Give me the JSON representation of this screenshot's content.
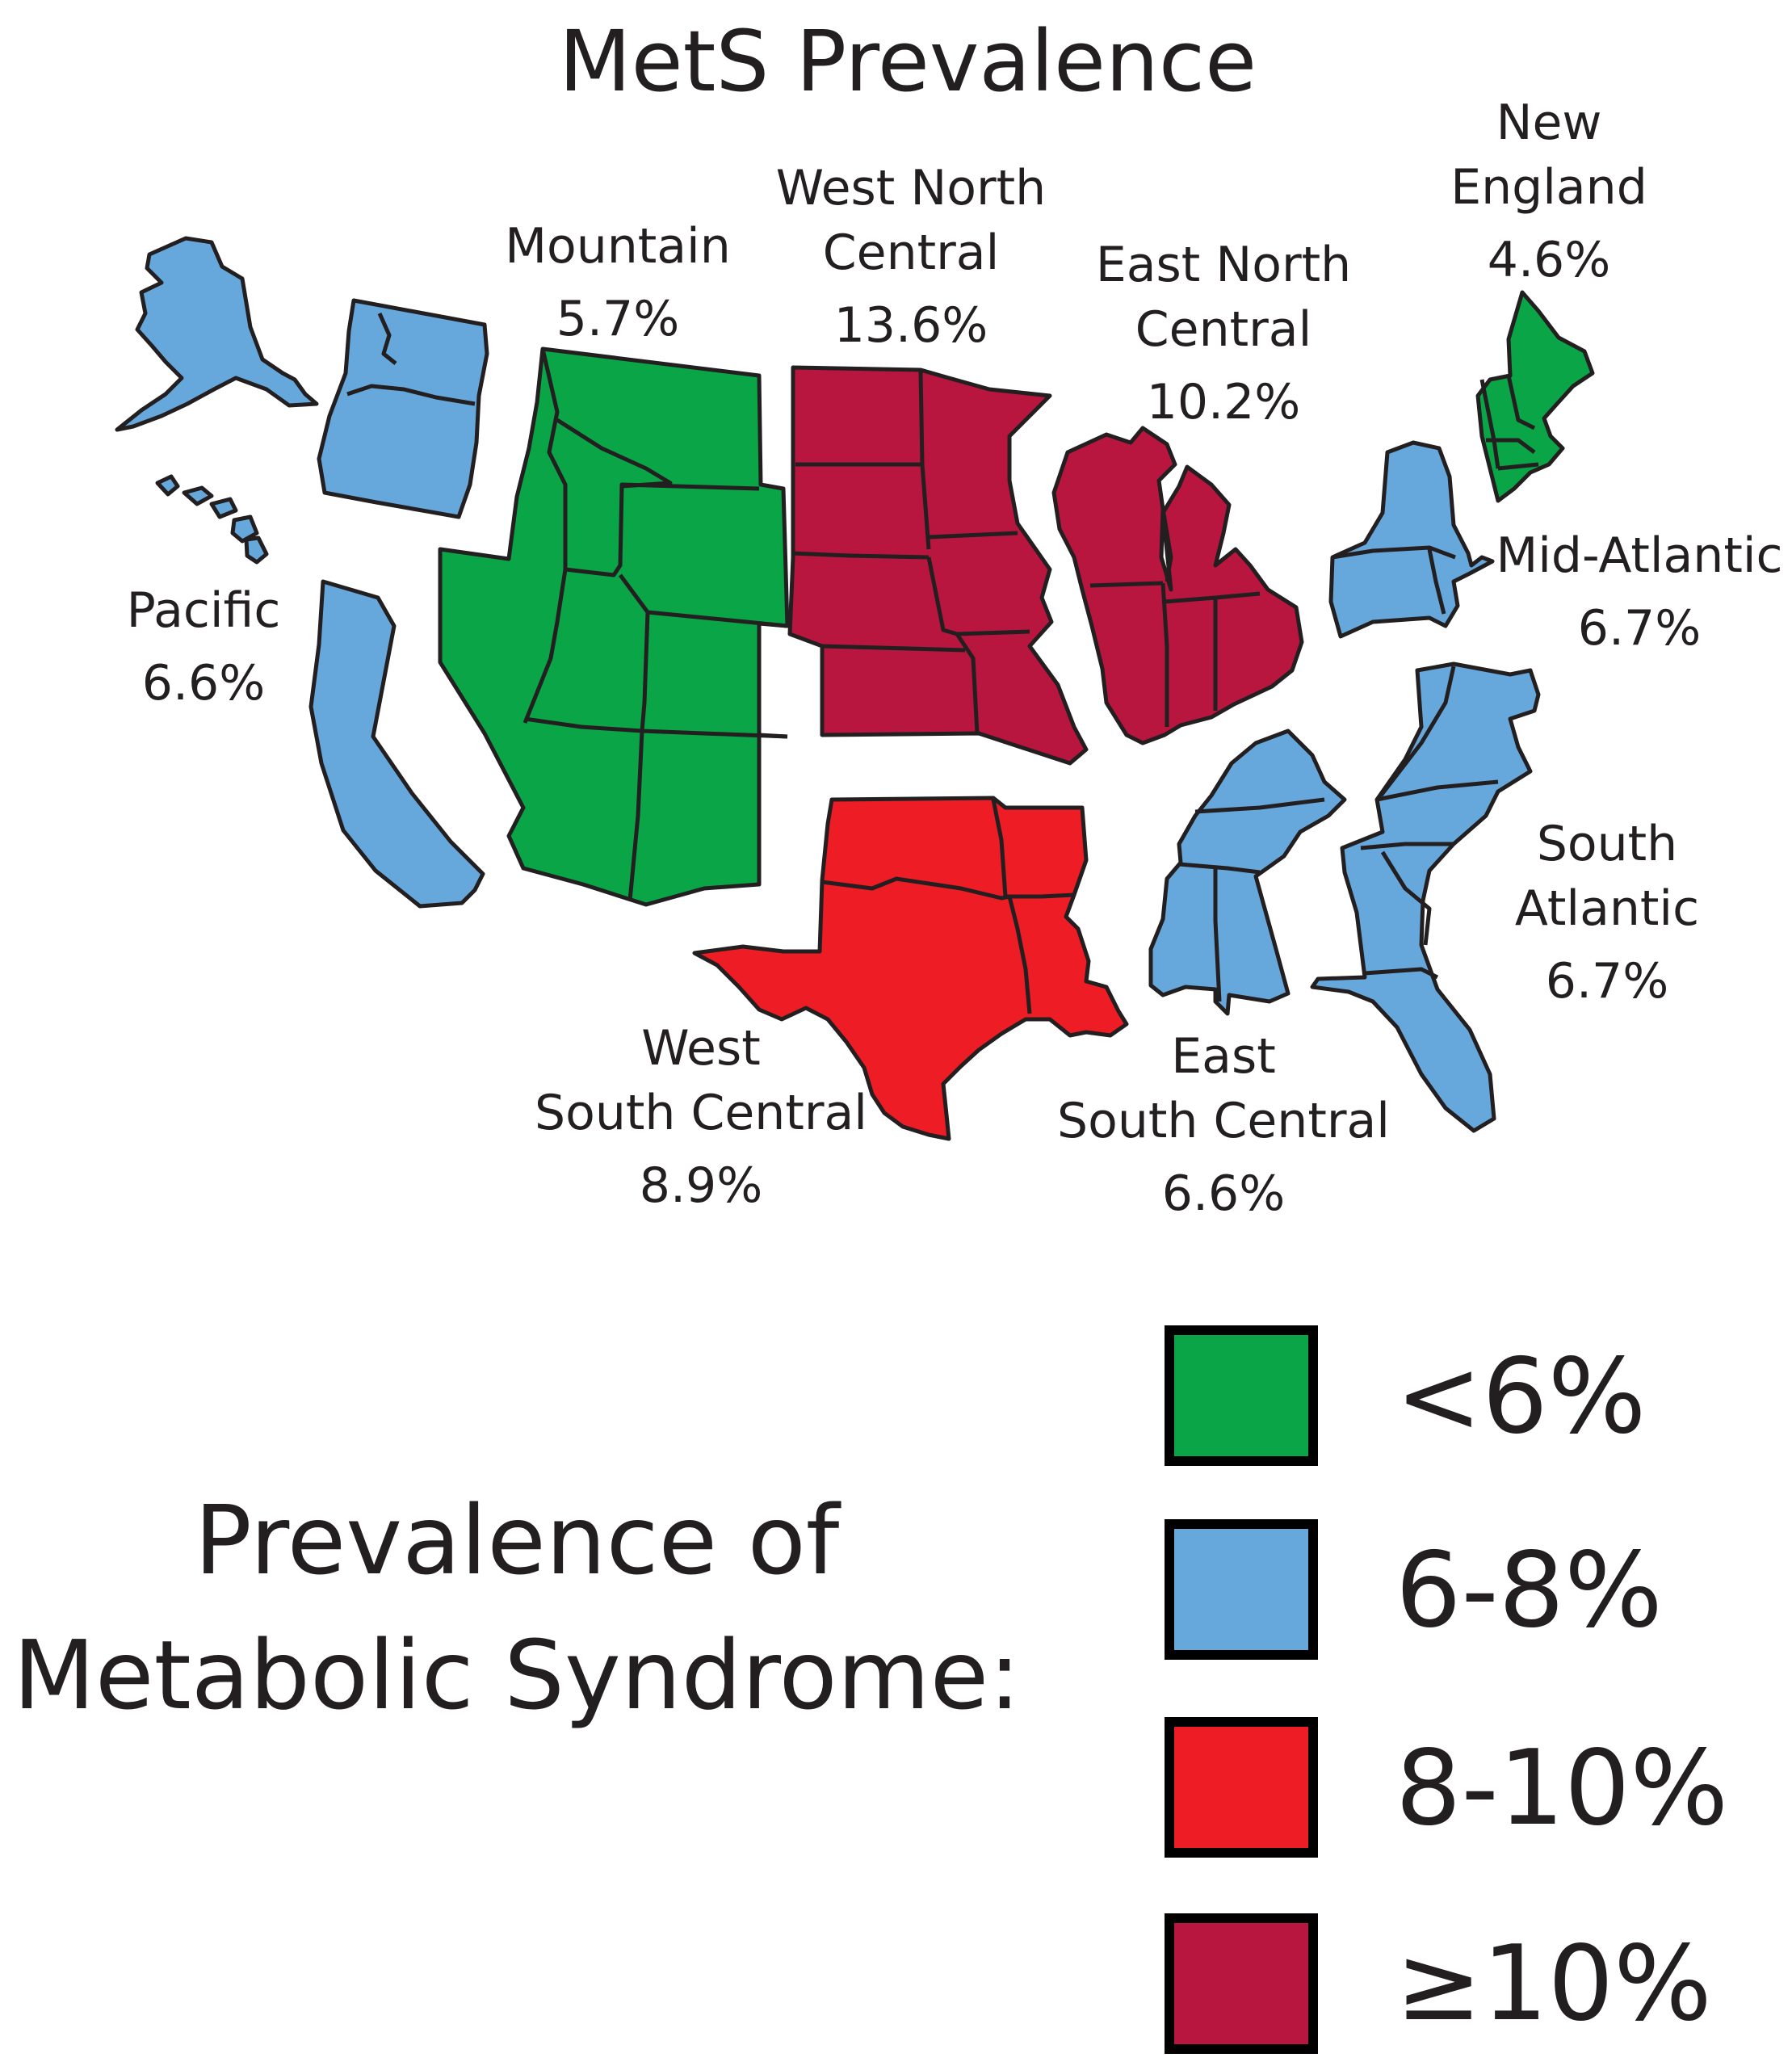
{
  "title": "MetS Prevalence",
  "colors": {
    "lt6": "#0aa546",
    "6to8": "#66a8dc",
    "8to10": "#ee1c24",
    "ge10": "#b8163f",
    "outline": "#231f20"
  },
  "regions": {
    "pacific": {
      "name": "Pacific",
      "value": "6.6%",
      "category": "6to8"
    },
    "mountain": {
      "name": "Mountain",
      "value": "5.7%",
      "category": "lt6"
    },
    "wnc": {
      "name_line1": "West North",
      "name_line2": "Central",
      "value": "13.6%",
      "category": "ge10"
    },
    "enc": {
      "name_line1": "East North",
      "name_line2": "Central",
      "value": "10.2%",
      "category": "ge10"
    },
    "ne": {
      "name_line1": "New",
      "name_line2": "England",
      "value": "4.6%",
      "category": "lt6"
    },
    "ma": {
      "name": "Mid-Atlantic",
      "value": "6.7%",
      "category": "6to8"
    },
    "sa": {
      "name_line1": "South",
      "name_line2": "Atlantic",
      "value": "6.7%",
      "category": "6to8"
    },
    "esc": {
      "name_line1": "East",
      "name_line2": "South Central",
      "value": "6.6%",
      "category": "6to8"
    },
    "wsc": {
      "name_line1": "West",
      "name_line2": "South Central",
      "value": "8.9%",
      "category": "8to10"
    }
  },
  "legend": {
    "title_line1": "Prevalence of",
    "title_line2": "Metabolic Syndrome:",
    "items": [
      {
        "label": "<6%",
        "category": "lt6"
      },
      {
        "label": "6-8%",
        "category": "6to8"
      },
      {
        "label": "8-10%",
        "category": "8to10"
      },
      {
        "label": "≥10%",
        "category": "ge10"
      }
    ]
  }
}
